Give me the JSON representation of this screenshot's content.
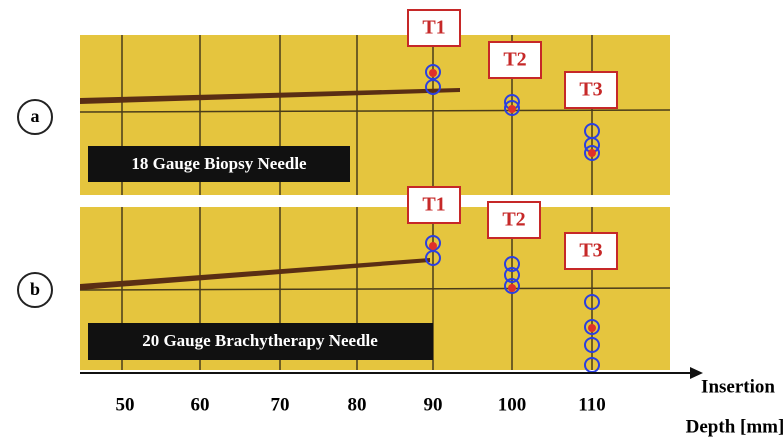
{
  "panels": [
    {
      "label": "a",
      "caption": "18 Gauge Biopsy Needle",
      "targets": [
        "T1",
        "T2",
        "T3"
      ]
    },
    {
      "label": "b",
      "caption": "20 Gauge Brachytherapy Needle",
      "targets": [
        "T1",
        "T2",
        "T3"
      ]
    }
  ],
  "axis": {
    "ticks": [
      50,
      60,
      70,
      80,
      90,
      100,
      110
    ],
    "label_lines": [
      "Insertion",
      "Depth [mm]"
    ]
  }
}
